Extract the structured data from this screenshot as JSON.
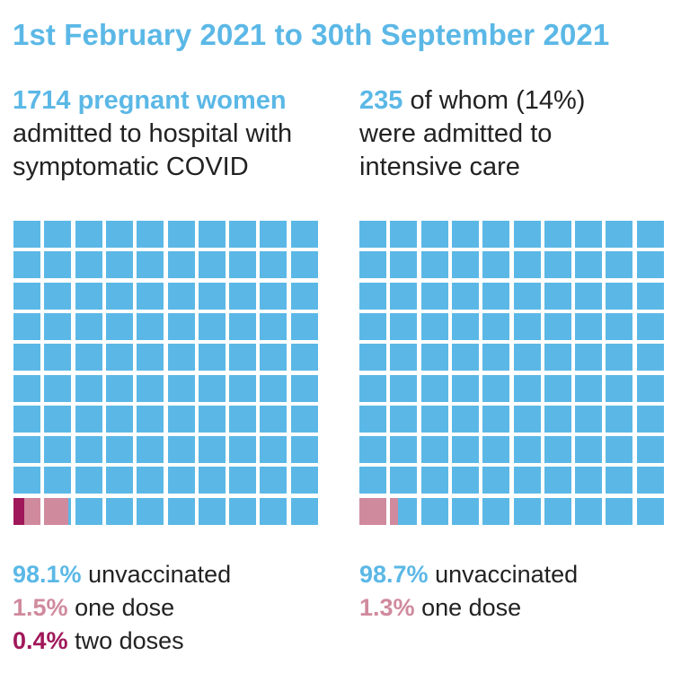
{
  "title": "1st February 2021 to 30th September 2021",
  "colors": {
    "unvaccinated": "#5bb8e6",
    "one_dose": "#d08a9d",
    "two_doses": "#a0185a",
    "text": "#222222"
  },
  "chart_data": [
    {
      "type": "waffle",
      "header": {
        "highlight": "1714 pregnant women",
        "line2": "admitted to hospital with",
        "line3": "symptomatic COVID"
      },
      "grid": [
        10,
        10
      ],
      "categories": [
        "unvaccinated",
        "one dose",
        "two doses"
      ],
      "values": [
        98.1,
        1.5,
        0.4
      ],
      "legend": [
        {
          "pct": "98.1%",
          "label": "unvaccinated",
          "color_key": "unvaccinated"
        },
        {
          "pct": "1.5%",
          "label": "one dose",
          "color_key": "one_dose"
        },
        {
          "pct": "0.4%",
          "label": "two doses",
          "color_key": "two_doses"
        }
      ]
    },
    {
      "type": "waffle",
      "header": {
        "highlight": "235",
        "rest": "of whom (14%)",
        "line2": "were admitted to",
        "line3": "intensive care"
      },
      "grid": [
        10,
        10
      ],
      "categories": [
        "unvaccinated",
        "one dose"
      ],
      "values": [
        98.7,
        1.3
      ],
      "legend": [
        {
          "pct": "98.7%",
          "label": "unvaccinated",
          "color_key": "unvaccinated"
        },
        {
          "pct": "1.3%",
          "label": "one dose",
          "color_key": "one_dose"
        }
      ]
    }
  ]
}
